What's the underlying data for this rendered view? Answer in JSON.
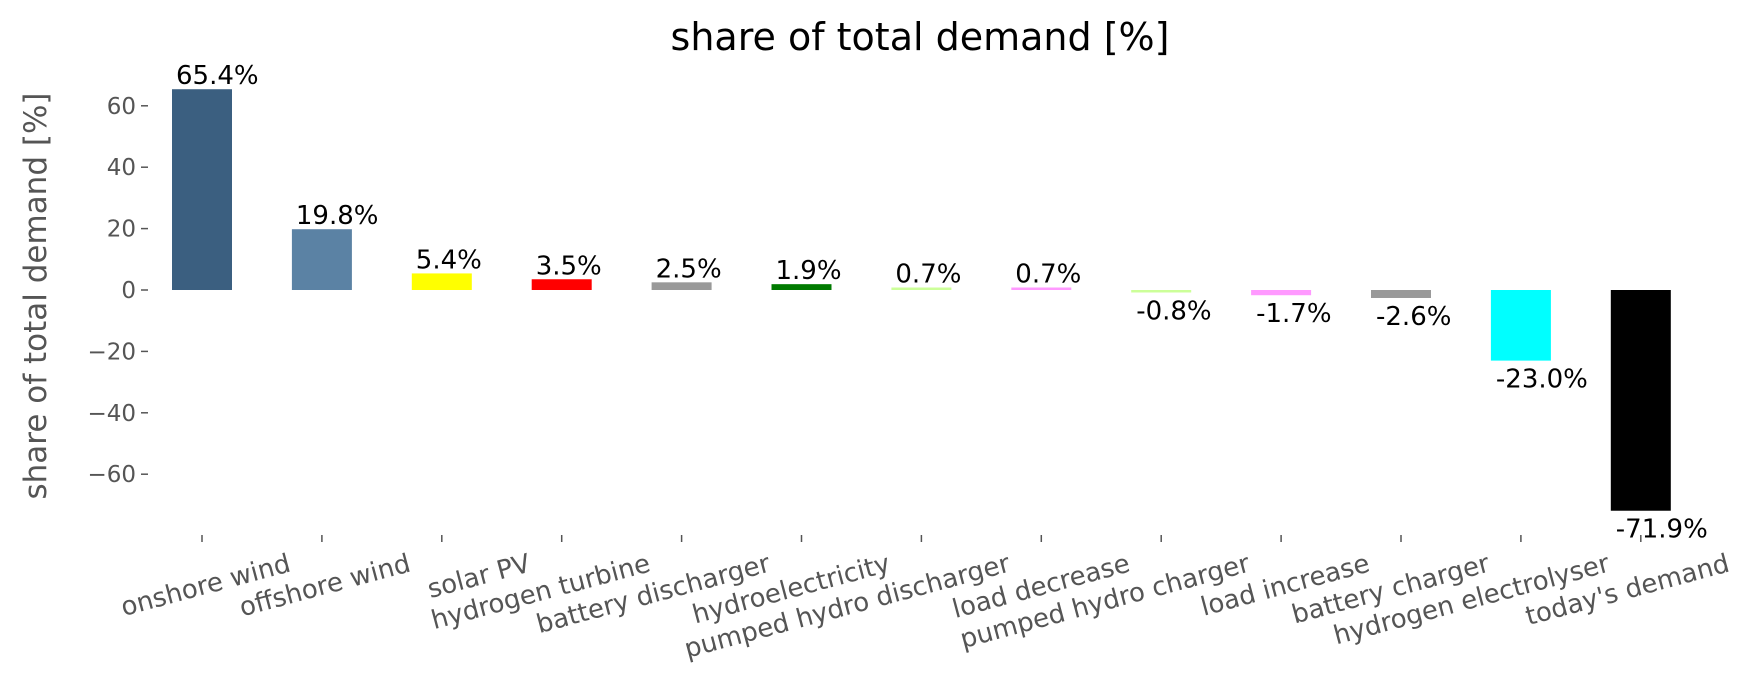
{
  "chart_data": {
    "type": "bar",
    "title": "share of total demand [%]",
    "xlabel": "",
    "ylabel": "share of total demand [%]",
    "ylim": [
      -80,
      70
    ],
    "yticks": [
      -60,
      -40,
      -20,
      0,
      20,
      40,
      60
    ],
    "grid": false,
    "categories": [
      "onshore wind",
      "offshore wind",
      "solar PV",
      "hydrogen turbine",
      "battery discharger",
      "hydroelectricity",
      "pumped hydro discharger",
      "load decrease",
      "pumped hydro charger",
      "load increase",
      "battery charger",
      "hydrogen electrolyser",
      "today's demand"
    ],
    "values": [
      65.4,
      19.8,
      5.4,
      3.5,
      2.5,
      1.9,
      0.7,
      0.7,
      -0.8,
      -1.7,
      -2.6,
      -23.0,
      -71.9
    ],
    "data_labels": [
      "65.4%",
      "19.8%",
      "5.4%",
      "3.5%",
      "2.5%",
      "1.9%",
      "0.7%",
      "0.7%",
      "-0.8%",
      "-1.7%",
      "-2.6%",
      "-23.0%",
      "-71.9%"
    ],
    "colors": [
      "#3b5f80",
      "#5b82a4",
      "#ffff00",
      "#ff0000",
      "#999999",
      "#007a00",
      "#ccff99",
      "#ff99ff",
      "#ccff99",
      "#ff99ff",
      "#999999",
      "#00ffff",
      "#000000"
    ]
  }
}
